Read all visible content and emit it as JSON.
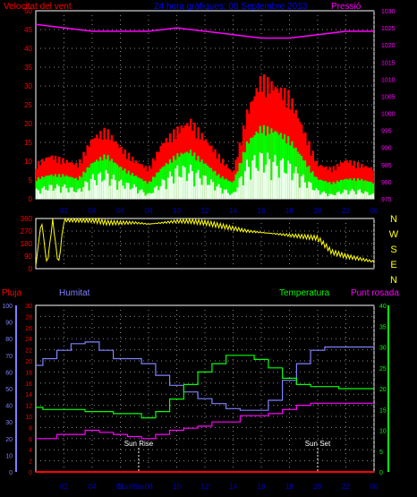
{
  "header": {
    "left_label": "Velocitat del vent",
    "center_title": "24 hora gràfiques: 08 Septembre 2013",
    "right_label": "Pressió"
  },
  "colors": {
    "wind_gust": "#ff0000",
    "wind_avg": "#00ff00",
    "wind_low": "#eaffea",
    "pressure": "#ff00ff",
    "direction": "#ffff00",
    "humidity": "#8080ff",
    "temperature": "#00ff00",
    "dewpoint": "#ff00ff",
    "rain": "#ff0000",
    "grid": "#ffffff",
    "axis_blue": "#0000cc",
    "title_blue": "#0000ff"
  },
  "bottom_labels": {
    "rain": "Pluja",
    "humidity": "Humitat",
    "temperature": "Temperatura",
    "dewpoint": "Punt rosada",
    "sunrise": "Sun Rise",
    "sunset": "Sun Set"
  },
  "time_ticks": [
    "02",
    "04",
    "06",
    "08",
    "10",
    "12",
    "14",
    "16",
    "18",
    "20",
    "22",
    "00"
  ],
  "sunrise_ticks": [
    "Sun",
    "Rise",
    "08"
  ],
  "chart_data": [
    {
      "type": "area",
      "name": "wind_and_pressure",
      "x_ticks": [
        "02",
        "04",
        "06",
        "08",
        "10",
        "12",
        "14",
        "16",
        "18",
        "20",
        "22",
        "00"
      ],
      "x_range_hours": [
        0,
        24
      ],
      "y_left": {
        "label": "Velocitat del vent",
        "range": [
          0,
          50
        ],
        "ticks": [
          0,
          5,
          10,
          15,
          20,
          25,
          30,
          35,
          40,
          45,
          50
        ]
      },
      "y_right": {
        "label": "Pressió",
        "range": [
          975,
          1030
        ],
        "ticks": [
          975,
          980,
          985,
          990,
          995,
          1000,
          1005,
          1010,
          1015,
          1020,
          1025,
          1030
        ]
      },
      "gust_hours": [
        0,
        1,
        2,
        3,
        4,
        5,
        6,
        7,
        8,
        9,
        10,
        11,
        12,
        13,
        14,
        15,
        16,
        17,
        18,
        19,
        20,
        21,
        22,
        23,
        24
      ],
      "gust": [
        8,
        10,
        9,
        8,
        14,
        16,
        12,
        9,
        7,
        13,
        16,
        18,
        14,
        10,
        6,
        20,
        28,
        26,
        24,
        16,
        8,
        7,
        9,
        8,
        7
      ],
      "avg": [
        5,
        6,
        6,
        5,
        9,
        11,
        8,
        6,
        4,
        8,
        11,
        12,
        9,
        6,
        4,
        14,
        18,
        17,
        15,
        10,
        5,
        4,
        5,
        5,
        4
      ],
      "low": [
        2,
        3,
        3,
        2,
        5,
        6,
        4,
        3,
        1,
        4,
        7,
        7,
        5,
        3,
        1,
        8,
        10,
        9,
        8,
        5,
        2,
        1,
        2,
        2,
        1
      ],
      "pressure_hours": [
        0,
        2,
        4,
        6,
        8,
        10,
        12,
        14,
        16,
        18,
        20,
        22,
        24
      ],
      "pressure": [
        1026,
        1025,
        1024,
        1024,
        1024,
        1025,
        1024,
        1023,
        1022,
        1022,
        1023,
        1024,
        1024
      ]
    },
    {
      "type": "scatter",
      "name": "wind_direction",
      "y_labels": [
        "360",
        "270",
        "180",
        "90",
        "0"
      ],
      "compass_labels": [
        "N",
        "W",
        "S",
        "E",
        "N"
      ],
      "y_range": [
        0,
        360
      ],
      "hours": [
        0,
        0.4,
        0.8,
        1.2,
        1.6,
        2,
        3,
        4,
        5,
        6,
        7,
        8,
        9,
        10,
        11,
        12,
        13,
        14,
        15,
        16,
        17,
        18,
        19,
        20,
        21,
        22,
        23,
        24
      ],
      "values": [
        20,
        350,
        20,
        350,
        20,
        350,
        350,
        350,
        330,
        330,
        330,
        320,
        330,
        340,
        340,
        330,
        310,
        290,
        270,
        260,
        250,
        240,
        230,
        220,
        120,
        90,
        70,
        50
      ]
    },
    {
      "type": "line",
      "name": "humidity_temp_dew_rain",
      "y_rain": {
        "label": "Pluja",
        "range": [
          0,
          30
        ],
        "ticks": [
          0,
          2,
          4,
          6,
          8,
          10,
          12,
          14,
          16,
          18,
          20,
          22,
          24,
          26,
          28,
          30
        ]
      },
      "y_humidity": {
        "label": "Humitat",
        "range": [
          0,
          100
        ],
        "ticks": [
          0,
          10,
          20,
          30,
          40,
          50,
          60,
          70,
          80,
          90,
          100
        ]
      },
      "y_right": {
        "label": "Temperatura",
        "range": [
          0,
          40
        ],
        "ticks": [
          0,
          5,
          10,
          15,
          20,
          25,
          30,
          35,
          40
        ]
      },
      "hours": [
        0,
        1,
        2,
        3,
        4,
        5,
        6,
        7,
        8,
        9,
        10,
        11,
        12,
        13,
        14,
        15,
        16,
        17,
        18,
        19,
        20,
        21,
        22,
        23,
        24
      ],
      "humidity": [
        64,
        68,
        73,
        77,
        78,
        73,
        68,
        68,
        65,
        58,
        52,
        48,
        44,
        41,
        38,
        37,
        37,
        43,
        55,
        65,
        73,
        75,
        75,
        75,
        75
      ],
      "temperature": [
        15.5,
        15,
        15,
        15,
        14.5,
        14.5,
        14,
        14,
        13,
        14.5,
        17.5,
        21,
        24,
        26,
        28,
        28,
        27,
        25,
        22.5,
        21,
        20.5,
        20.5,
        20,
        20,
        20
      ],
      "dewpoint": [
        8,
        8,
        9,
        9,
        10,
        9.5,
        9,
        8.5,
        8,
        9,
        10,
        10.5,
        11,
        12,
        12,
        13.5,
        13.5,
        14,
        15,
        16,
        16.5,
        16.5,
        16.5,
        16.5,
        16.5
      ],
      "rain": [
        0,
        0,
        0,
        0,
        0,
        0,
        0,
        0,
        0,
        0,
        0,
        0,
        0,
        0,
        0,
        0,
        0,
        0,
        0,
        0,
        0,
        0,
        0,
        0,
        0
      ],
      "sunrise_hour": 7.3,
      "sunset_hour": 20
    }
  ]
}
